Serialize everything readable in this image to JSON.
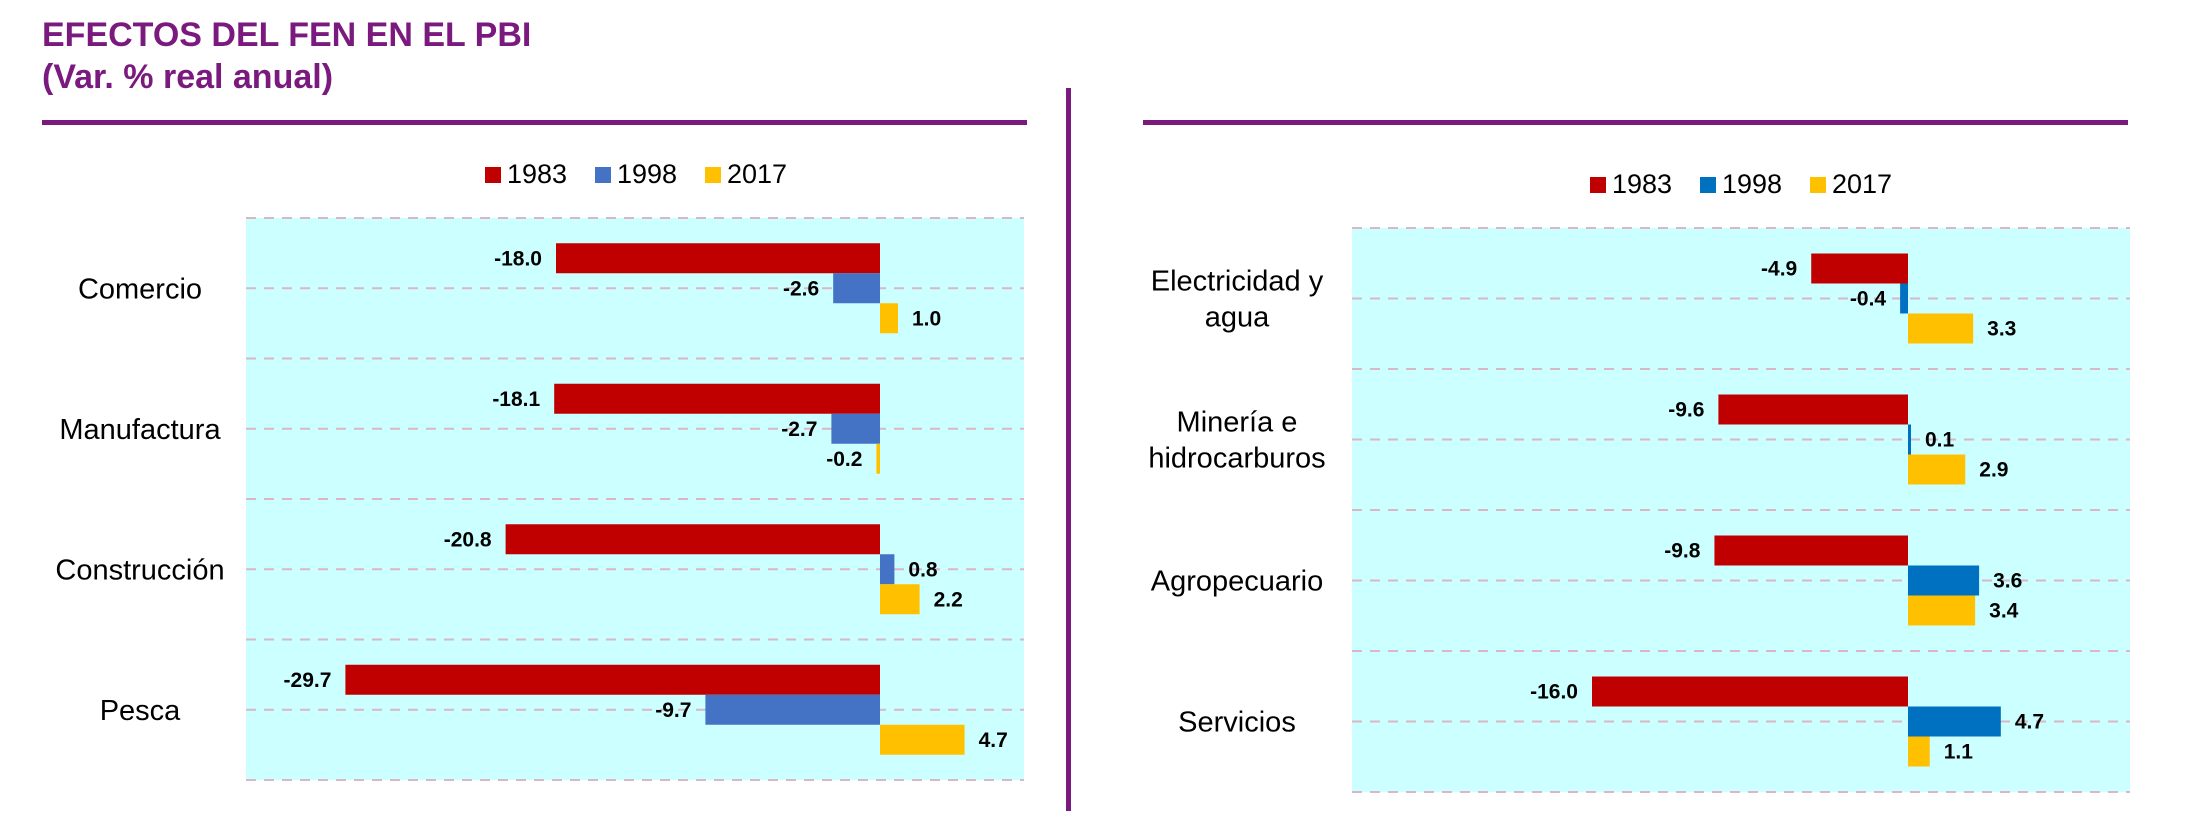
{
  "header": {
    "title": "EFECTOS DEL FEN EN EL PBI",
    "subtitle": "(Var. % real anual)"
  },
  "colors": {
    "title": "#7B1A7E",
    "plot_bg": "#CCFFFF",
    "grid": "#D9B7C4"
  },
  "chart_data": [
    {
      "type": "bar",
      "orientation": "horizontal",
      "categories": [
        "Comercio",
        "Manufactura",
        "Construcción",
        "Pesca"
      ],
      "series": [
        {
          "name": "1983",
          "color": "#C00000",
          "values": [
            -18.0,
            -18.1,
            -20.8,
            -29.7
          ]
        },
        {
          "name": "1998",
          "color": "#4472C4",
          "values": [
            -2.6,
            -2.7,
            0.8,
            -9.7
          ]
        },
        {
          "name": "2017",
          "color": "#FFC000",
          "values": [
            1.0,
            -0.2,
            2.2,
            4.7
          ]
        }
      ],
      "xlim": [
        -35,
        8
      ],
      "legend": "top",
      "grid": true
    },
    {
      "type": "bar",
      "orientation": "horizontal",
      "categories": [
        "Electricidad y agua",
        "Minería e hidrocarburos",
        "Agropecuario",
        "Servicios"
      ],
      "series": [
        {
          "name": "1983",
          "color": "#C00000",
          "values": [
            -4.9,
            -9.6,
            -9.8,
            -16.0
          ]
        },
        {
          "name": "1998",
          "color": "#0070C0",
          "values": [
            -0.4,
            0.1,
            3.6,
            4.7
          ]
        },
        {
          "name": "2017",
          "color": "#FFC000",
          "values": [
            3.3,
            2.9,
            3.4,
            1.1
          ]
        }
      ],
      "xlim": [
        -20,
        8
      ],
      "legend": "top",
      "grid": true
    }
  ]
}
